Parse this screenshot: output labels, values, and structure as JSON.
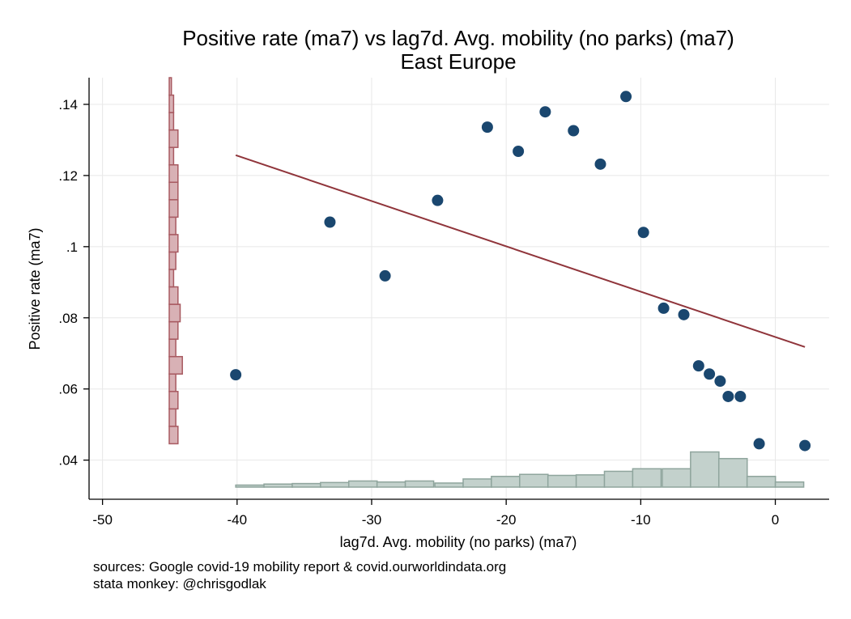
{
  "chart_data": {
    "type": "scatter",
    "title": "Positive rate (ma7) vs lag7d. Avg. mobility (no parks) (ma7)",
    "subtitle": "East Europe",
    "xlabel": "lag7d. Avg. mobility (no parks) (ma7)",
    "ylabel": "Positive rate (ma7)",
    "xlim": [
      -51,
      4
    ],
    "ylim": [
      0.029,
      0.1475
    ],
    "xticks": [
      -50,
      -40,
      -30,
      -20,
      -10,
      0
    ],
    "xtick_labels": [
      "-50",
      "-40",
      "-30",
      "-20",
      "-10",
      "0"
    ],
    "yticks": [
      0.04,
      0.06,
      0.08,
      0.1,
      0.12,
      0.14
    ],
    "ytick_labels": [
      ".04",
      ".06",
      ".08",
      ".1",
      ".12",
      ".14"
    ],
    "grid": true,
    "legend": "none",
    "points": [
      {
        "x": -40.1,
        "y": 0.064
      },
      {
        "x": -33.1,
        "y": 0.1069
      },
      {
        "x": -29.0,
        "y": 0.0918
      },
      {
        "x": -25.1,
        "y": 0.113
      },
      {
        "x": -21.4,
        "y": 0.1336
      },
      {
        "x": -19.1,
        "y": 0.1268
      },
      {
        "x": -17.1,
        "y": 0.1379
      },
      {
        "x": -15.0,
        "y": 0.1326
      },
      {
        "x": -13.0,
        "y": 0.1232
      },
      {
        "x": -11.1,
        "y": 0.1422
      },
      {
        "x": -9.8,
        "y": 0.104
      },
      {
        "x": -8.3,
        "y": 0.0827
      },
      {
        "x": -6.8,
        "y": 0.0809
      },
      {
        "x": -5.7,
        "y": 0.0665
      },
      {
        "x": -4.9,
        "y": 0.0642
      },
      {
        "x": -4.1,
        "y": 0.0622
      },
      {
        "x": -3.5,
        "y": 0.0579
      },
      {
        "x": -2.6,
        "y": 0.0579
      },
      {
        "x": -1.2,
        "y": 0.0446
      },
      {
        "x": 2.2,
        "y": 0.0441
      }
    ],
    "fit_line": {
      "x": [
        -40.1,
        2.2
      ],
      "y": [
        0.1257,
        0.0718
      ]
    },
    "x_histogram": {
      "bin_starts": [
        -40.1,
        -38.0,
        -35.9,
        -33.8,
        -31.7,
        -29.6,
        -27.5,
        -25.3,
        -23.2,
        -21.1,
        -19.0,
        -16.9,
        -14.8,
        -12.7,
        -10.6,
        -8.4,
        -6.3,
        -4.2,
        -2.1,
        0.0
      ],
      "bin_width": 2.11,
      "heights": [
        0.4,
        0.6,
        0.7,
        0.9,
        1.2,
        1.0,
        1.2,
        0.8,
        1.6,
        2.1,
        2.5,
        2.3,
        2.4,
        3.1,
        3.6,
        3.6,
        6.9,
        5.6,
        2.1,
        1.0
      ]
    },
    "y_histogram": {
      "bin_starts": [
        0.0446,
        0.0495,
        0.0544,
        0.0593,
        0.0642,
        0.0691,
        0.074,
        0.0789,
        0.0838,
        0.0887,
        0.0936,
        0.0985,
        0.1034,
        0.1083,
        0.1132,
        0.1181,
        0.123,
        0.1279,
        0.1328,
        0.1377,
        0.1426
      ],
      "bin_width": 0.0049,
      "heights": [
        4,
        3,
        4,
        3,
        6,
        3,
        4,
        5,
        4,
        2,
        3,
        4,
        3,
        4,
        4,
        4,
        2,
        4,
        2,
        2,
        1
      ]
    }
  },
  "notes": {
    "line1": "sources: Google covid-19 mobility report & covid.ourworldindata.org",
    "line2": "stata monkey: @chrisgodlak"
  },
  "colors": {
    "markers": "#1a476f",
    "fit_line": "#90353b",
    "y_histogram_fill": "#d8b1b5",
    "y_histogram_edge": "#a85a61",
    "x_histogram_fill": "#c3d1cc",
    "x_histogram_edge": "#8fa59d",
    "grid": "#e8e8e8"
  }
}
